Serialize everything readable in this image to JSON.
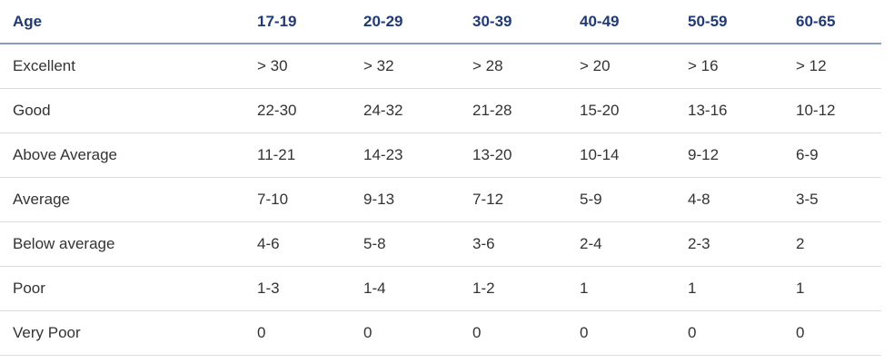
{
  "table": {
    "header": [
      "Age",
      "17-19",
      "20-29",
      "30-39",
      "40-49",
      "50-59",
      "60-65"
    ],
    "rows": [
      [
        "Excellent",
        "> 30",
        "> 32",
        "> 28",
        "> 20",
        "> 16",
        "> 12"
      ],
      [
        "Good",
        "22-30",
        "24-32",
        "21-28",
        "15-20",
        "13-16",
        "10-12"
      ],
      [
        "Above Average",
        "11-21",
        "14-23",
        "13-20",
        "10-14",
        "9-12",
        "6-9"
      ],
      [
        "Average",
        "7-10",
        "9-13",
        "7-12",
        "5-9",
        "4-8",
        "3-5"
      ],
      [
        "Below average",
        "4-6",
        "5-8",
        "3-6",
        "2-4",
        "2-3",
        "2"
      ],
      [
        "Poor",
        "1-3",
        "1-4",
        "1-2",
        "1",
        "1",
        "1"
      ],
      [
        "Very Poor",
        "0",
        "0",
        "0",
        "0",
        "0",
        "0"
      ]
    ]
  }
}
